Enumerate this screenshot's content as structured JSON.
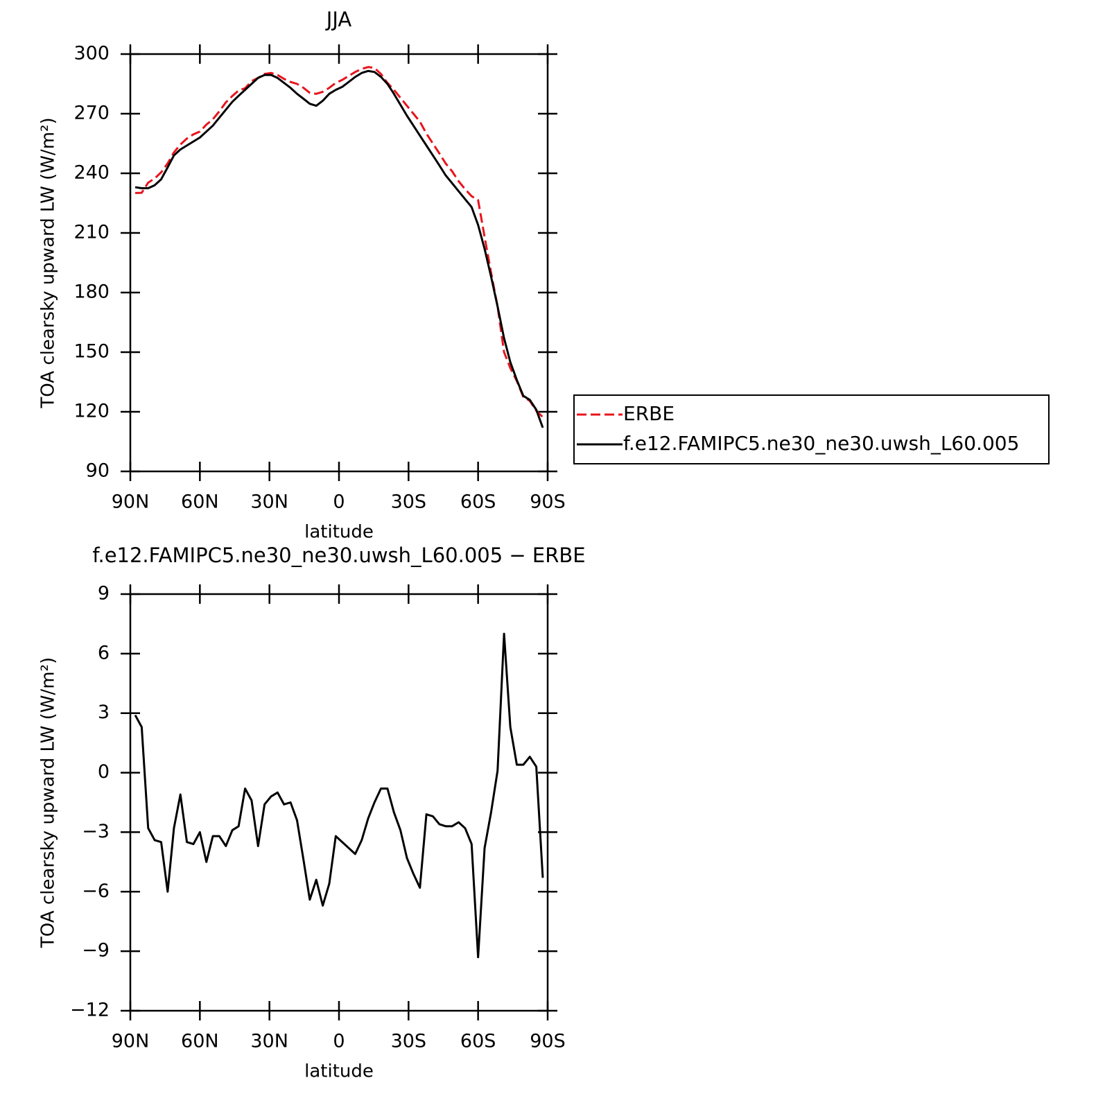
{
  "chart_data": [
    {
      "type": "line",
      "title": "JJA",
      "xlabel": "latitude",
      "ylabel": "TOA clearsky upward LW (W/m²)",
      "x": [
        87.9,
        85.1,
        82.3,
        79.5,
        76.7,
        73.9,
        71.2,
        68.4,
        65.6,
        62.8,
        60.0,
        57.2,
        54.4,
        51.6,
        48.8,
        46.0,
        43.3,
        40.5,
        37.7,
        34.9,
        32.1,
        29.3,
        26.5,
        23.7,
        20.9,
        18.1,
        15.3,
        12.6,
        9.8,
        7.0,
        4.2,
        1.4,
        -1.4,
        -4.2,
        -7.0,
        -9.8,
        -12.6,
        -15.3,
        -18.1,
        -20.9,
        -23.7,
        -26.5,
        -29.3,
        -32.1,
        -34.9,
        -37.7,
        -40.5,
        -43.3,
        -46.0,
        -48.8,
        -51.6,
        -54.4,
        -57.2,
        -60.0,
        -62.8,
        -65.6,
        -68.4,
        -71.2,
        -73.9,
        -76.7,
        -79.5,
        -82.3,
        -85.1,
        -87.9
      ],
      "series": [
        {
          "name": "ERBE",
          "color": "#e8141c",
          "dashed": true,
          "values": [
            230.1,
            230.2,
            235.3,
            237.4,
            240.5,
            245,
            250.5,
            254.5,
            257.5,
            259.6,
            261,
            264.5,
            267.2,
            271.2,
            275.7,
            278.9,
            281.7,
            282.8,
            286.4,
            288,
            290,
            290.5,
            289.5,
            287.5,
            286,
            285,
            283,
            280.5,
            280,
            281,
            283,
            285.5,
            287,
            289,
            291,
            292.5,
            293.5,
            293,
            290,
            285.5,
            282,
            278,
            274,
            270,
            266,
            260,
            255,
            250,
            245,
            241,
            236,
            232,
            228.5,
            226.5,
            208,
            190,
            173,
            150,
            142,
            135.5,
            127.5,
            125.5,
            120.5,
            117.3
          ]
        },
        {
          "name": "f.e12.FAMIPC5.ne30_ne30.uwsh_L60.005",
          "color": "#000000",
          "dashed": false,
          "values": [
            233,
            232.5,
            232.5,
            234,
            237,
            243,
            249,
            252,
            254,
            256,
            258,
            261,
            264,
            268,
            272,
            276,
            279,
            282,
            285,
            288,
            289.5,
            289.5,
            288,
            285.5,
            283,
            280,
            277.5,
            275,
            274,
            276.5,
            280,
            282,
            283.5,
            286,
            288.5,
            290.5,
            291.5,
            291,
            288.5,
            285,
            280,
            274.5,
            269,
            264,
            259,
            254,
            249,
            244,
            239,
            235,
            231,
            227,
            223,
            214,
            202,
            188,
            173,
            157,
            145,
            136,
            128,
            126,
            121,
            112
          ]
        }
      ],
      "xlim": [
        90,
        -90
      ],
      "xticks": [
        {
          "value": 90,
          "label": "90N"
        },
        {
          "value": 60,
          "label": "60N"
        },
        {
          "value": 30,
          "label": "30N"
        },
        0,
        {
          "value": -30,
          "label": "30S"
        },
        {
          "value": -60,
          "label": "60S"
        },
        {
          "value": -90,
          "label": "90S"
        }
      ],
      "ylim": [
        90,
        300
      ],
      "yticks": [
        90,
        120,
        150,
        180,
        210,
        240,
        270,
        300
      ],
      "legend": "right"
    },
    {
      "type": "line",
      "title": "f.e12.FAMIPC5.ne30_ne30.uwsh_L60.005 − ERBE",
      "xlabel": "latitude",
      "ylabel": "TOA clearsky upward LW (W/m²)",
      "x": [
        87.9,
        85.1,
        82.3,
        79.5,
        76.7,
        73.9,
        71.2,
        68.4,
        65.6,
        62.8,
        60.0,
        57.2,
        54.4,
        51.6,
        48.8,
        46.0,
        43.3,
        40.5,
        37.7,
        34.9,
        32.1,
        29.3,
        26.5,
        23.7,
        20.9,
        18.1,
        15.3,
        12.6,
        9.8,
        7.0,
        4.2,
        1.4,
        -1.4,
        -4.2,
        -7.0,
        -9.8,
        -12.6,
        -15.3,
        -18.1,
        -20.9,
        -23.7,
        -26.5,
        -29.3,
        -32.1,
        -34.9,
        -37.7,
        -40.5,
        -43.3,
        -46.0,
        -48.8,
        -51.6,
        -54.4,
        -57.2,
        -60.0,
        -62.8,
        -65.6,
        -68.4,
        -71.2,
        -73.9,
        -76.7,
        -79.5,
        -82.3,
        -85.1,
        -87.9
      ],
      "series": [
        {
          "color": "#000000",
          "dashed": false,
          "values": [
            2.9,
            2.3,
            -2.8,
            -3.4,
            -3.5,
            -6.0,
            -2.8,
            -1.1,
            -3.5,
            -3.6,
            -3.0,
            -4.5,
            -3.2,
            -3.2,
            -3.7,
            -2.9,
            -2.7,
            -0.8,
            -1.4,
            -3.7,
            -1.6,
            -1.2,
            -1.0,
            -1.6,
            -1.5,
            -2.4,
            -4.4,
            -6.4,
            -5.4,
            -6.7,
            -5.6,
            -3.2,
            -3.5,
            -3.8,
            -4.1,
            -3.4,
            -2.3,
            -1.5,
            -0.8,
            -0.8,
            -2.0,
            -2.9,
            -4.3,
            -5.1,
            -5.8,
            -2.1,
            -2.2,
            -2.6,
            -2.7,
            -2.7,
            -2.5,
            -2.8,
            -3.6,
            -9.3,
            -3.8,
            -2.0,
            0.1,
            7.0,
            2.3,
            0.4,
            0.4,
            0.8,
            0.3,
            -5.3
          ]
        }
      ],
      "xlim": [
        90,
        -90
      ],
      "xticks": [
        {
          "value": 90,
          "label": "90N"
        },
        {
          "value": 60,
          "label": "60N"
        },
        {
          "value": 30,
          "label": "30N"
        },
        0,
        {
          "value": -30,
          "label": "30S"
        },
        {
          "value": -60,
          "label": "60S"
        },
        {
          "value": -90,
          "label": "90S"
        }
      ],
      "ylim": [
        -12,
        9
      ],
      "yticks": [
        {
          "value": -12,
          "label": "−12"
        },
        {
          "value": -9,
          "label": "−9"
        },
        {
          "value": -6,
          "label": "−6"
        },
        {
          "value": -3,
          "label": "−3"
        },
        0,
        3,
        6,
        9
      ]
    }
  ]
}
